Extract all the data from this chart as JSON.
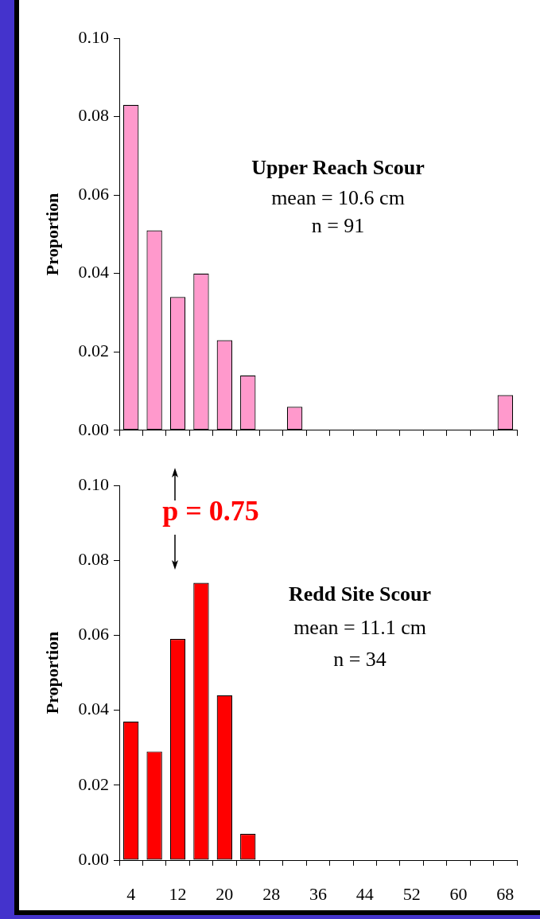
{
  "chart_data": [
    {
      "type": "bar",
      "title": "Upper Reach Scour",
      "annotations": [
        "mean = 10.6 cm",
        "n = 91"
      ],
      "ylabel": "Proportion",
      "categories": [
        "4",
        null,
        "12",
        null,
        "20",
        null,
        "28",
        null,
        "36",
        null,
        "44",
        null,
        "52",
        null,
        "60",
        null,
        "68"
      ],
      "series": [
        {
          "color": "#ff99cc",
          "values": [
            0.083,
            0.051,
            0.034,
            0.04,
            0.023,
            0.014,
            0,
            0.006,
            0,
            0,
            0,
            0,
            0,
            0,
            0,
            0,
            0.009
          ]
        }
      ],
      "ylim": [
        0,
        0.1
      ],
      "yticks": [
        {
          "value": 0,
          "label": "0.00"
        },
        {
          "value": 0.02,
          "label": "0.02"
        },
        {
          "value": 0.04,
          "label": "0.04"
        },
        {
          "value": 0.06,
          "label": "0.06"
        },
        {
          "value": 0.08,
          "label": "0.08"
        },
        {
          "value": 0.1,
          "label": "0.10"
        }
      ],
      "tick_labels": "y",
      "grid": false,
      "legend": false
    },
    {
      "type": "bar",
      "title": "Redd Site Scour",
      "annotations": [
        "mean = 11.1 cm",
        "n = 34",
        "p = 0.75"
      ],
      "ylabel": "Proportion",
      "categories": [
        "4",
        null,
        "12",
        null,
        "20",
        null,
        "28",
        null,
        "36",
        null,
        "44",
        null,
        "52",
        null,
        "60",
        null,
        "68"
      ],
      "series": [
        {
          "color": "#ff0000",
          "values": [
            0.037,
            0.029,
            0.059,
            0.074,
            0.044,
            0.007,
            0,
            0,
            0,
            0,
            0,
            0,
            0,
            0,
            0,
            0,
            0
          ]
        }
      ],
      "ylim": [
        0,
        0.1
      ],
      "yticks": [
        {
          "value": 0,
          "label": "0.00"
        },
        {
          "value": 0.02,
          "label": "0.02"
        },
        {
          "value": 0.04,
          "label": "0.04"
        },
        {
          "value": 0.06,
          "label": "0.06"
        },
        {
          "value": 0.08,
          "label": "0.08"
        },
        {
          "value": 0.1,
          "label": "0.10"
        }
      ],
      "grid": false,
      "legend": false
    }
  ]
}
